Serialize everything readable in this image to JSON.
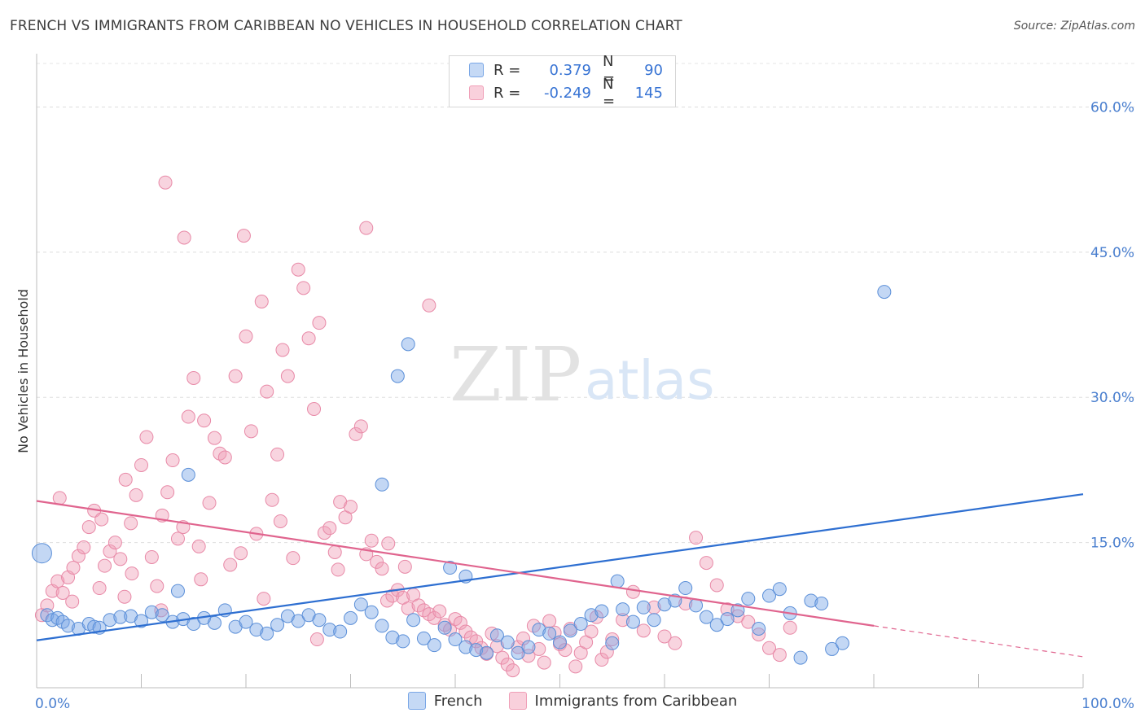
{
  "title": "FRENCH VS IMMIGRANTS FROM CARIBBEAN NO VEHICLES IN HOUSEHOLD CORRELATION CHART",
  "source": "Source: ZipAtlas.com",
  "watermark": {
    "zip": "ZIP",
    "atlas": "atlas"
  },
  "legend": {
    "r_label": "R =",
    "n_label": "N =",
    "rows": [
      {
        "r": "0.379",
        "n": "90"
      },
      {
        "r": "-0.249",
        "n": "145"
      }
    ]
  },
  "chart_data": {
    "type": "scatter",
    "title": "FRENCH VS IMMIGRANTS FROM CARIBBEAN NO VEHICLES IN HOUSEHOLD CORRELATION CHART",
    "xlabel": "",
    "ylabel": "No Vehicles in Household",
    "xlim": [
      0,
      100
    ],
    "ylim": [
      0,
      65
    ],
    "x_tick_labels": [
      "0.0%",
      "100.0%"
    ],
    "y_ticks": [
      15,
      30,
      45,
      60
    ],
    "y_tick_labels": [
      "15.0%",
      "30.0%",
      "45.0%",
      "60.0%"
    ],
    "grid": true,
    "legend_position": "top-center",
    "colors": {
      "french": "#7aa7e6",
      "caribbean": "#f0a0b8",
      "french_line": "#2e6fd1",
      "caribbean_line": "#e0648e"
    },
    "series": [
      {
        "name": "French",
        "color": "#7aa7e6",
        "trend": {
          "x": [
            0,
            100
          ],
          "y": [
            4.9,
            20.0
          ]
        },
        "points": [
          [
            1,
            7.5
          ],
          [
            1.5,
            7.0
          ],
          [
            2,
            7.2
          ],
          [
            2.5,
            6.8
          ],
          [
            3,
            6.4
          ],
          [
            4,
            6.1
          ],
          [
            5,
            6.6
          ],
          [
            5.5,
            6.3
          ],
          [
            6,
            6.2
          ],
          [
            7,
            7.0
          ],
          [
            8,
            7.3
          ],
          [
            9,
            7.4
          ],
          [
            10,
            6.9
          ],
          [
            11,
            7.8
          ],
          [
            12,
            7.5
          ],
          [
            13,
            6.8
          ],
          [
            14,
            7.1
          ],
          [
            15,
            6.6
          ],
          [
            16,
            7.2
          ],
          [
            17,
            6.7
          ],
          [
            18,
            8.0
          ],
          [
            19,
            6.3
          ],
          [
            20,
            6.8
          ],
          [
            21,
            6.0
          ],
          [
            22,
            5.6
          ],
          [
            23,
            6.5
          ],
          [
            24,
            7.4
          ],
          [
            25,
            6.9
          ],
          [
            26,
            7.5
          ],
          [
            27,
            7.0
          ],
          [
            28,
            6.0
          ],
          [
            29,
            5.8
          ],
          [
            30,
            7.2
          ],
          [
            31,
            8.6
          ],
          [
            32,
            7.8
          ],
          [
            33,
            6.4
          ],
          [
            34,
            5.2
          ],
          [
            35,
            4.8
          ],
          [
            36,
            7.0
          ],
          [
            37,
            5.1
          ],
          [
            38,
            4.4
          ],
          [
            39,
            6.2
          ],
          [
            40,
            5.0
          ],
          [
            41,
            4.2
          ],
          [
            42,
            3.9
          ],
          [
            43,
            3.6
          ],
          [
            44,
            5.4
          ],
          [
            45,
            4.7
          ],
          [
            46,
            3.6
          ],
          [
            47,
            4.2
          ],
          [
            48,
            6.0
          ],
          [
            49,
            5.6
          ],
          [
            50,
            4.7
          ],
          [
            51,
            5.9
          ],
          [
            52,
            6.6
          ],
          [
            53,
            7.5
          ],
          [
            54,
            7.9
          ],
          [
            55,
            4.6
          ],
          [
            56,
            8.1
          ],
          [
            57,
            6.8
          ],
          [
            58,
            8.3
          ],
          [
            59,
            7.0
          ],
          [
            60,
            8.6
          ],
          [
            61,
            9.0
          ],
          [
            62,
            10.3
          ],
          [
            63,
            8.5
          ],
          [
            64,
            7.3
          ],
          [
            65,
            6.5
          ],
          [
            66,
            7.1
          ],
          [
            67,
            8.0
          ],
          [
            68,
            9.2
          ],
          [
            69,
            6.1
          ],
          [
            70,
            9.5
          ],
          [
            71,
            10.2
          ],
          [
            72,
            7.7
          ],
          [
            73,
            3.1
          ],
          [
            74,
            9.0
          ],
          [
            75,
            8.7
          ],
          [
            76,
            4.0
          ],
          [
            77,
            4.6
          ],
          [
            0.5,
            13.9
          ],
          [
            13.5,
            10.0
          ],
          [
            14.5,
            22.0
          ],
          [
            33,
            21.0
          ],
          [
            34.5,
            32.2
          ],
          [
            35.5,
            35.5
          ],
          [
            39.5,
            12.4
          ],
          [
            41,
            11.5
          ],
          [
            81,
            40.9
          ],
          [
            55.5,
            11.0
          ]
        ]
      },
      {
        "name": "Immigrants from Caribbean",
        "color": "#f0a0b8",
        "trend": {
          "x": [
            0,
            80
          ],
          "y": [
            19.3,
            6.4
          ]
        },
        "trend_dashed": {
          "x": [
            80,
            100
          ],
          "y": [
            6.4,
            3.2
          ]
        },
        "points": [
          [
            0.5,
            7.5
          ],
          [
            1,
            8.5
          ],
          [
            1.5,
            10.0
          ],
          [
            2,
            11.0
          ],
          [
            2.5,
            9.8
          ],
          [
            3,
            11.4
          ],
          [
            3.5,
            12.4
          ],
          [
            4,
            13.6
          ],
          [
            4.5,
            14.5
          ],
          [
            5,
            16.6
          ],
          [
            5.5,
            18.3
          ],
          [
            6,
            10.3
          ],
          [
            6.5,
            12.6
          ],
          [
            7,
            14.1
          ],
          [
            7.5,
            15.0
          ],
          [
            8,
            13.3
          ],
          [
            8.5,
            21.5
          ],
          [
            9,
            17.0
          ],
          [
            9.5,
            19.9
          ],
          [
            10,
            23.0
          ],
          [
            10.5,
            25.9
          ],
          [
            11,
            13.5
          ],
          [
            11.5,
            10.5
          ],
          [
            12,
            17.8
          ],
          [
            12.5,
            20.2
          ],
          [
            13,
            23.5
          ],
          [
            13.5,
            15.4
          ],
          [
            14,
            16.6
          ],
          [
            14.5,
            28.0
          ],
          [
            15,
            32.0
          ],
          [
            15.5,
            14.6
          ],
          [
            16,
            27.6
          ],
          [
            16.5,
            19.1
          ],
          [
            17,
            25.8
          ],
          [
            17.5,
            24.2
          ],
          [
            18,
            23.8
          ],
          [
            18.5,
            12.7
          ],
          [
            19,
            32.2
          ],
          [
            19.5,
            13.9
          ],
          [
            20,
            36.3
          ],
          [
            20.5,
            26.5
          ],
          [
            21,
            15.9
          ],
          [
            21.5,
            39.9
          ],
          [
            22,
            30.6
          ],
          [
            22.5,
            19.4
          ],
          [
            23,
            24.1
          ],
          [
            23.5,
            34.9
          ],
          [
            24,
            32.2
          ],
          [
            24.5,
            13.4
          ],
          [
            25,
            43.2
          ],
          [
            25.5,
            41.3
          ],
          [
            26,
            36.1
          ],
          [
            26.5,
            28.8
          ],
          [
            27,
            37.7
          ],
          [
            27.5,
            16.0
          ],
          [
            28,
            16.5
          ],
          [
            28.5,
            14.0
          ],
          [
            29,
            19.2
          ],
          [
            29.5,
            17.6
          ],
          [
            30,
            18.7
          ],
          [
            30.5,
            26.2
          ],
          [
            31,
            27.0
          ],
          [
            31.5,
            13.8
          ],
          [
            32,
            15.2
          ],
          [
            32.5,
            13.0
          ],
          [
            33,
            12.3
          ],
          [
            33.5,
            9.0
          ],
          [
            34,
            9.5
          ],
          [
            34.5,
            10.1
          ],
          [
            35,
            9.3
          ],
          [
            35.5,
            8.2
          ],
          [
            36,
            9.6
          ],
          [
            36.5,
            8.5
          ],
          [
            37,
            8.0
          ],
          [
            37.5,
            7.6
          ],
          [
            38,
            7.2
          ],
          [
            38.5,
            7.9
          ],
          [
            39,
            6.5
          ],
          [
            39.5,
            6.0
          ],
          [
            40,
            7.1
          ],
          [
            40.5,
            6.7
          ],
          [
            41,
            5.8
          ],
          [
            41.5,
            5.2
          ],
          [
            42,
            4.8
          ],
          [
            42.5,
            4.1
          ],
          [
            43,
            3.5
          ],
          [
            43.5,
            5.6
          ],
          [
            44,
            4.3
          ],
          [
            44.5,
            3.1
          ],
          [
            45,
            2.4
          ],
          [
            45.5,
            1.8
          ],
          [
            46,
            4.2
          ],
          [
            46.5,
            5.1
          ],
          [
            47,
            3.3
          ],
          [
            47.5,
            6.4
          ],
          [
            48,
            4.0
          ],
          [
            48.5,
            2.6
          ],
          [
            49,
            6.9
          ],
          [
            49.5,
            5.7
          ],
          [
            50,
            4.5
          ],
          [
            50.5,
            3.9
          ],
          [
            51,
            6.1
          ],
          [
            51.5,
            2.2
          ],
          [
            52,
            3.6
          ],
          [
            52.5,
            4.7
          ],
          [
            53,
            5.8
          ],
          [
            53.5,
            7.3
          ],
          [
            54,
            2.9
          ],
          [
            54.5,
            3.7
          ],
          [
            55,
            5.0
          ],
          [
            56,
            7.0
          ],
          [
            57,
            9.9
          ],
          [
            58,
            5.9
          ],
          [
            59,
            8.3
          ],
          [
            60,
            5.3
          ],
          [
            61,
            4.6
          ],
          [
            62,
            8.7
          ],
          [
            63,
            15.5
          ],
          [
            64,
            12.9
          ],
          [
            65,
            10.6
          ],
          [
            66,
            8.1
          ],
          [
            67,
            7.4
          ],
          [
            68,
            6.8
          ],
          [
            69,
            5.5
          ],
          [
            70,
            4.1
          ],
          [
            71,
            3.4
          ],
          [
            72,
            6.2
          ],
          [
            12.3,
            52.2
          ],
          [
            14.1,
            46.5
          ],
          [
            19.8,
            46.7
          ],
          [
            31.5,
            47.5
          ],
          [
            37.5,
            39.5
          ],
          [
            23.3,
            17.2
          ],
          [
            26.8,
            5.0
          ],
          [
            28.8,
            12.2
          ],
          [
            33.6,
            14.9
          ],
          [
            35.2,
            12.5
          ],
          [
            21.7,
            9.2
          ],
          [
            9.1,
            11.8
          ],
          [
            11.9,
            8.0
          ],
          [
            2.2,
            19.6
          ],
          [
            3.4,
            8.9
          ],
          [
            6.2,
            17.4
          ],
          [
            8.4,
            9.4
          ],
          [
            15.7,
            11.2
          ]
        ]
      }
    ]
  }
}
